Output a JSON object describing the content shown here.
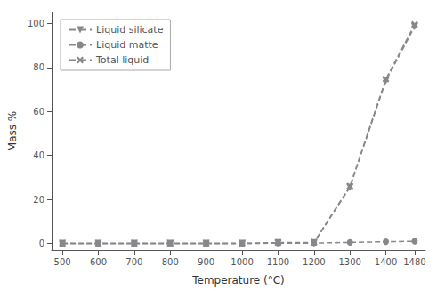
{
  "chart_data": {
    "type": "line",
    "xlabel": "Temperature (°C)",
    "ylabel": "Mass %",
    "x": [
      500,
      600,
      700,
      800,
      900,
      1000,
      1100,
      1200,
      1300,
      1400,
      1480
    ],
    "series": [
      {
        "name": "Liquid silicate",
        "color": "#888888",
        "marker": "triangle_down",
        "line_style": "dashed",
        "values": [
          0.0,
          0.0,
          0.0,
          0.0,
          0.0,
          0.0,
          0.3,
          0.3,
          25.5,
          74.0,
          98.5
        ]
      },
      {
        "name": "Liquid matte",
        "color": "#888888",
        "marker": "circle",
        "line_style": "dashed",
        "values": [
          0.0,
          0.0,
          0.0,
          0.0,
          0.0,
          0.05,
          0.1,
          0.2,
          0.5,
          0.8,
          1.0
        ]
      },
      {
        "name": "Total liquid",
        "color": "#888888",
        "marker": "x",
        "line_style": "dashed",
        "values": [
          0.0,
          0.0,
          0.0,
          0.0,
          0.0,
          0.05,
          0.4,
          0.5,
          26.0,
          74.8,
          99.5
        ]
      }
    ],
    "xlim": [
      470,
      1510
    ],
    "ylim": [
      -3,
      105
    ],
    "xticks": [
      500,
      600,
      700,
      800,
      900,
      1000,
      1100,
      1200,
      1300,
      1400,
      1480
    ],
    "yticks": [
      0,
      20,
      40,
      60,
      80,
      100
    ],
    "grid": false,
    "legend": "upper left"
  }
}
